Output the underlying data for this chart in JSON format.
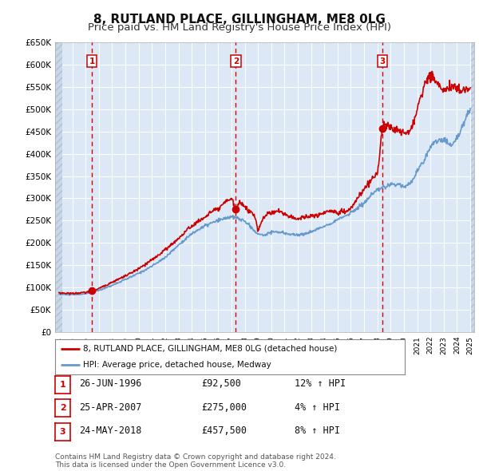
{
  "title": "8, RUTLAND PLACE, GILLINGHAM, ME8 0LG",
  "subtitle": "Price paid vs. HM Land Registry's House Price Index (HPI)",
  "ylim": [
    0,
    650000
  ],
  "yticks": [
    0,
    50000,
    100000,
    150000,
    200000,
    250000,
    300000,
    350000,
    400000,
    450000,
    500000,
    550000,
    600000,
    650000
  ],
  "xlim_start": 1993.7,
  "xlim_end": 2025.3,
  "background_color": "#ffffff",
  "plot_bg_color": "#dce8f5",
  "grid_color": "#ffffff",
  "sale_dates": [
    1996.48,
    2007.32,
    2018.39
  ],
  "sale_prices": [
    92500,
    275000,
    457500
  ],
  "sale_labels": [
    "1",
    "2",
    "3"
  ],
  "sale_date_strs": [
    "26-JUN-1996",
    "25-APR-2007",
    "24-MAY-2018"
  ],
  "sale_price_strs": [
    "£92,500",
    "£275,000",
    "£457,500"
  ],
  "sale_hpi_strs": [
    "12% ↑ HPI",
    "4% ↑ HPI",
    "8% ↑ HPI"
  ],
  "legend_line1": "8, RUTLAND PLACE, GILLINGHAM, ME8 0LG (detached house)",
  "legend_line2": "HPI: Average price, detached house, Medway",
  "footer": "Contains HM Land Registry data © Crown copyright and database right 2024.\nThis data is licensed under the Open Government Licence v3.0.",
  "line_red_color": "#cc0000",
  "line_blue_color": "#6699cc",
  "marker_color": "#cc0000",
  "vline_color": "#dd0000",
  "title_fontsize": 11,
  "subtitle_fontsize": 9.5
}
